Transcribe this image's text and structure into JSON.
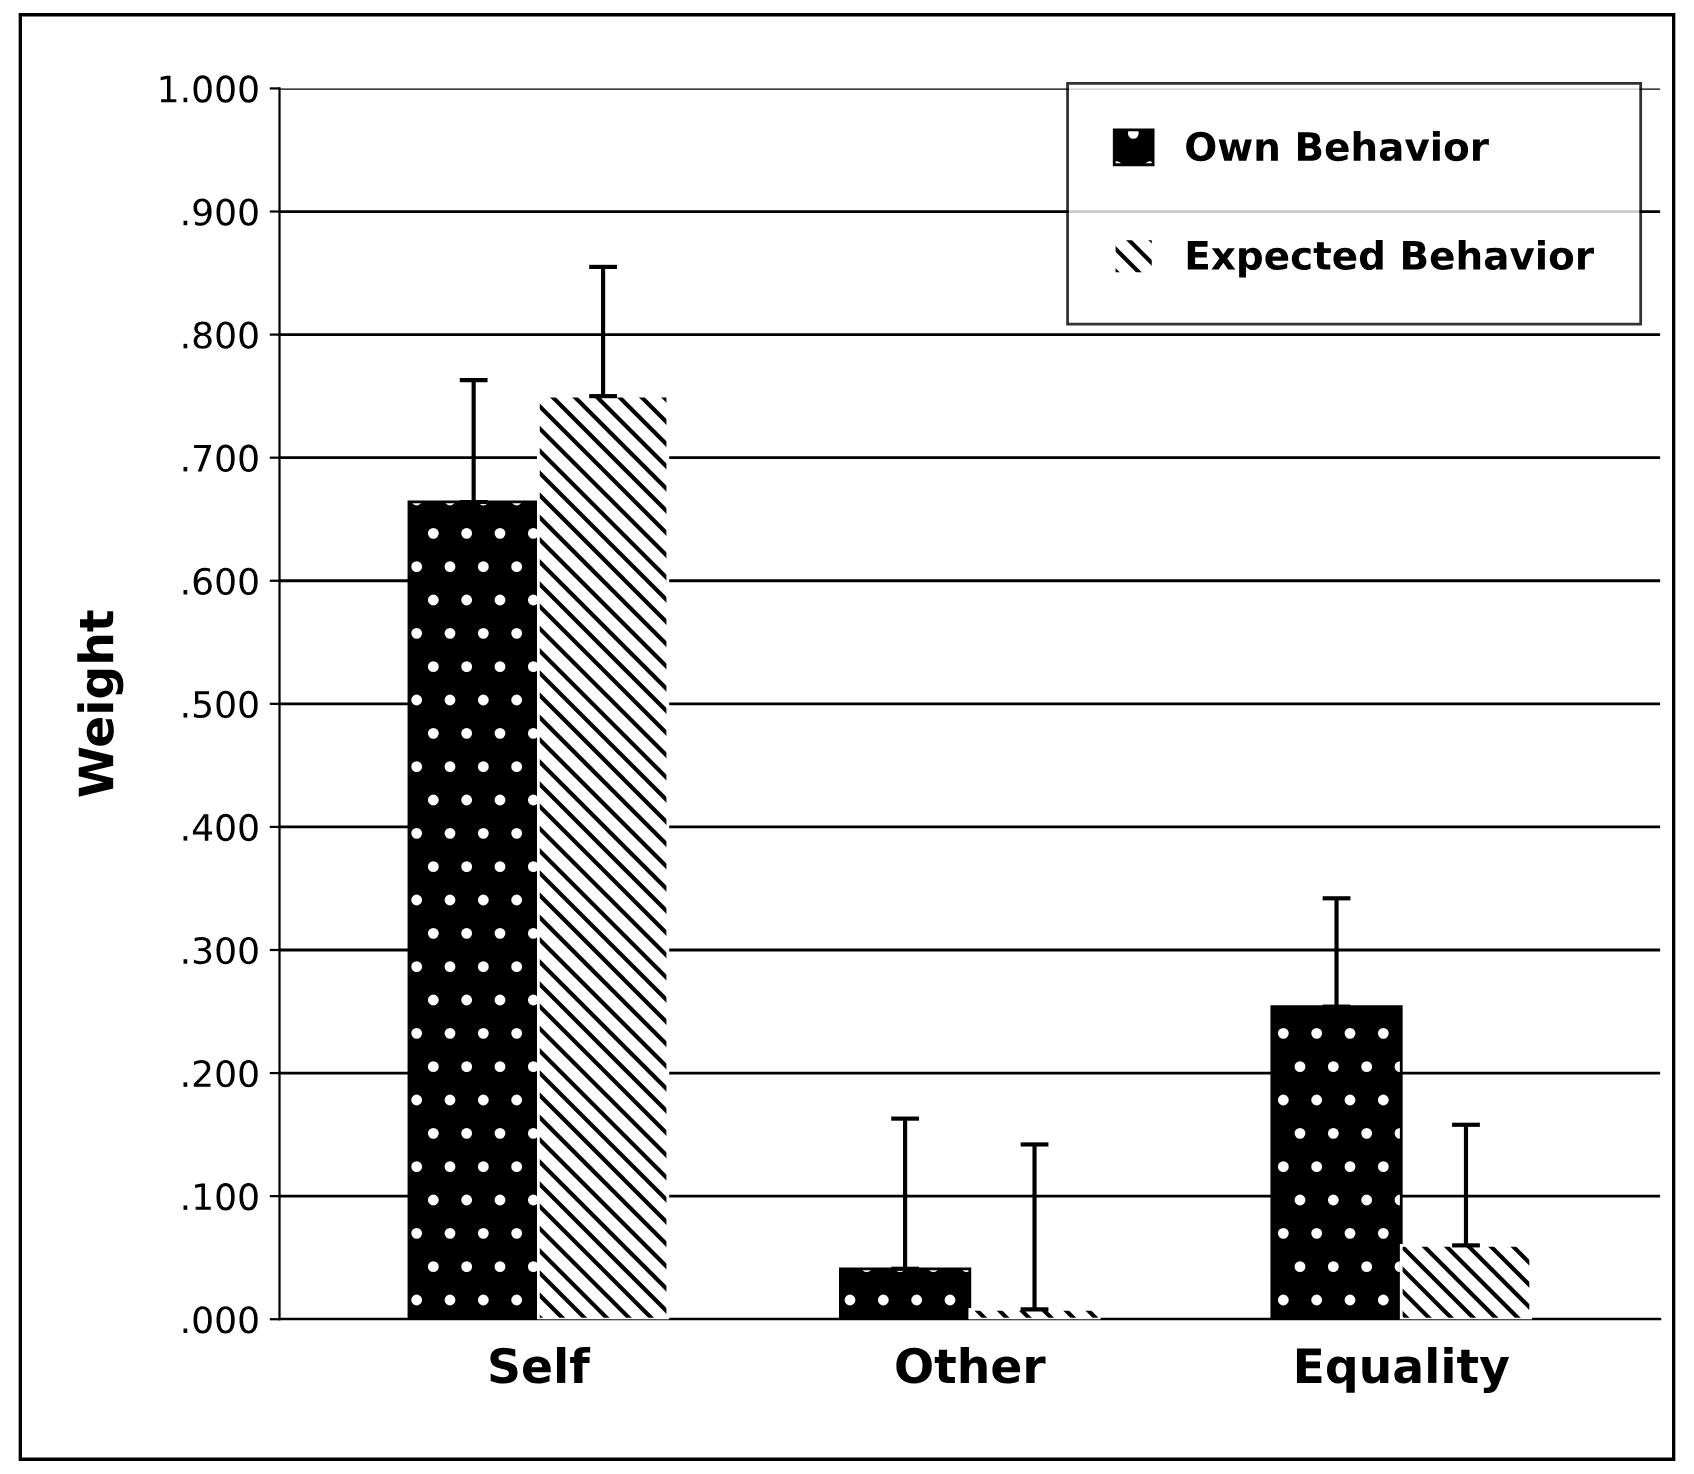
{
  "chart_data": {
    "type": "bar",
    "ylabel": "Weight",
    "categories": [
      "Self",
      "Other",
      "Equality"
    ],
    "series": [
      {
        "name": "Own Behavior",
        "color": "#000000",
        "values": [
          0.664,
          0.041,
          0.254
        ],
        "errors": [
          [
            0.664,
            0.763
          ],
          [
            0.041,
            0.163
          ],
          [
            0.254,
            0.342
          ]
        ]
      },
      {
        "name": "Expected Behavior",
        "color": "#ffffff",
        "values": [
          0.75,
          0.008,
          0.06
        ],
        "errors": [
          [
            0.75,
            0.855
          ],
          [
            0.008,
            0.142
          ],
          [
            0.06,
            0.158
          ]
        ]
      }
    ],
    "ylim": [
      0,
      1
    ],
    "yticks": [
      {
        "value": 0,
        "label": ".000"
      },
      {
        "value": 0.1,
        "label": ".100"
      },
      {
        "value": 0.2,
        "label": ".200"
      },
      {
        "value": 0.3,
        "label": ".300"
      },
      {
        "value": 0.4,
        "label": ".400"
      },
      {
        "value": 0.5,
        "label": ".500"
      },
      {
        "value": 0.6,
        "label": ".600"
      },
      {
        "value": 0.7,
        "label": ".700"
      },
      {
        "value": 0.8,
        "label": ".800"
      },
      {
        "value": 0.9,
        "label": ".900"
      },
      {
        "value": 1,
        "label": "1.000"
      }
    ],
    "grid": "y",
    "legend": "top right"
  }
}
